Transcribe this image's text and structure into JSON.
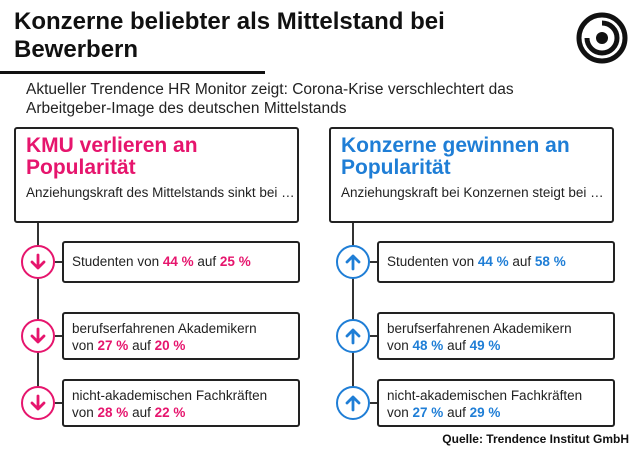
{
  "title": "Konzerne beliebter als Mittelstand bei Bewerbern",
  "subtitle": "Aktueller Trendence HR Monitor zeigt: Corona-Krise verschlechtert das Arbeitgeber-Image des deutschen Mittelstands",
  "source": "Quelle: Trendence Institut GmbH",
  "colors": {
    "decline": "#e6156d",
    "growth": "#1f7ed6"
  },
  "left_panel": {
    "title": "KMU verlieren an Popularität",
    "subtitle": "Anziehungskraft des Mittelstands sinkt bei …",
    "arrow_icon": "arrow-down-icon"
  },
  "right_panel": {
    "title": "Konzerne gewinnen an Popularität",
    "subtitle": "Anziehungskraft bei Konzernen steigt bei …",
    "arrow_icon": "arrow-up-icon"
  },
  "units": {
    "percent": "%",
    "von": "von",
    "auf": "auf"
  },
  "chart_data": {
    "type": "table",
    "categories": [
      "Studenten",
      "berufserfahrenen Akademikern",
      "nicht-akademischen Fachkräften"
    ],
    "series": [
      {
        "name": "KMU",
        "from": [
          44,
          27,
          28
        ],
        "to": [
          25,
          20,
          22
        ]
      },
      {
        "name": "Konzerne",
        "from": [
          44,
          48,
          27
        ],
        "to": [
          58,
          49,
          29
        ]
      }
    ]
  }
}
